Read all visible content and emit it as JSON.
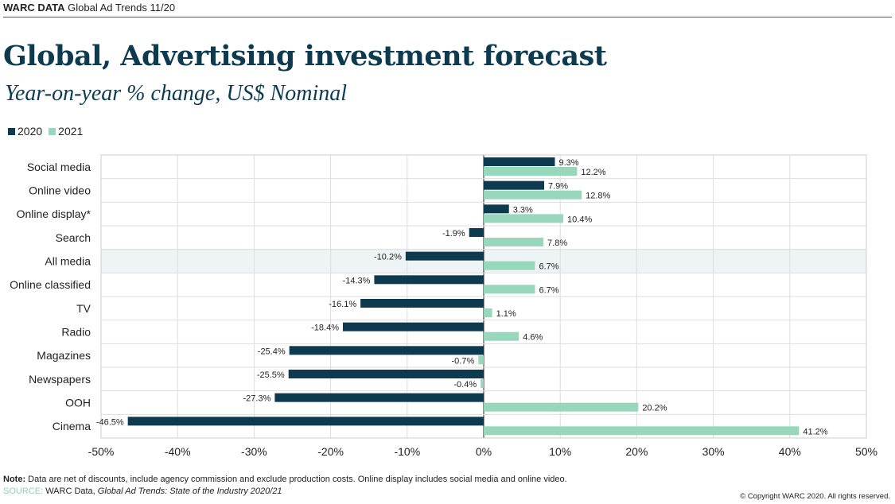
{
  "header": {
    "brand": "WARC DATA",
    "publication": "Global Ad Trends 11/20"
  },
  "title": "Global, Advertising investment forecast",
  "subtitle": "Year-on-year % change, US$ Nominal",
  "footer": {
    "note_label": "Note:",
    "note": "Data are net of discounts, include agency commission and exclude production costs. Online display includes social media and online video.",
    "source_label": "SOURCE:",
    "source_plain": "WARC Data,",
    "source_italic": "Global Ad Trends: State of the Industry 2020/21",
    "copyright": "© Copyright WARC 2020. All rights reserved."
  },
  "chart_data": {
    "type": "bar",
    "orientation": "horizontal",
    "title": "Global, Advertising investment forecast",
    "categories": [
      "Social media",
      "Online video",
      "Online display*",
      "Search",
      "All media",
      "Online classified",
      "TV",
      "Radio",
      "Magazines",
      "Newspapers",
      "OOH",
      "Cinema"
    ],
    "highlighted_category": "All media",
    "series": [
      {
        "name": "2020",
        "color": "#0e3a4f",
        "values": [
          9.3,
          7.9,
          3.3,
          -1.9,
          -10.2,
          -14.3,
          -16.1,
          -18.4,
          -25.4,
          -25.5,
          -27.3,
          -46.5
        ]
      },
      {
        "name": "2021",
        "color": "#98d7bb",
        "values": [
          12.2,
          12.8,
          10.4,
          7.8,
          6.7,
          6.7,
          1.1,
          4.6,
          -0.7,
          -0.4,
          20.2,
          41.2
        ]
      }
    ],
    "xlim": [
      -50,
      50
    ],
    "xticks": [
      "-50%",
      "-40%",
      "-30%",
      "-20%",
      "-10%",
      "0%",
      "10%",
      "20%",
      "30%",
      "40%",
      "50%"
    ],
    "legend_placement": "top-left",
    "grid": true
  }
}
